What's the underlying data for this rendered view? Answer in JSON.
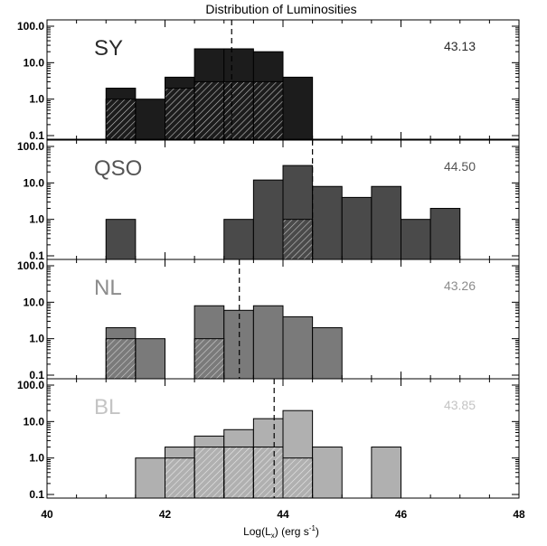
{
  "chart_data": {
    "type": "bar",
    "title": "Distribution of Luminosities",
    "xlabel_main": "Log(L",
    "xlabel_sub": "x",
    "xlabel_rest": ") (erg s",
    "xlabel_sup": "-1",
    "xlabel_end": ")",
    "xlim": [
      40,
      48
    ],
    "xticks": [
      "40",
      "42",
      "44",
      "46",
      "48"
    ],
    "yscale": "log",
    "ylim": [
      0.1,
      100
    ],
    "yticks": [
      "0.1",
      "1.0",
      "10.0",
      "100.0"
    ],
    "bin_width": 0.5,
    "panels": [
      {
        "label": "SY",
        "median_label": "43.13",
        "median": 43.13,
        "fill": "#1c1c1c",
        "text_color": "#2a2a2a",
        "hatch_color": "#c4c4c4",
        "total_bins": [
          [
            41.0,
            2
          ],
          [
            41.5,
            1
          ],
          [
            42.0,
            4
          ],
          [
            42.5,
            24
          ],
          [
            43.0,
            24
          ],
          [
            43.5,
            20
          ],
          [
            44.0,
            4
          ]
        ],
        "hatched_bins": [
          [
            41.0,
            1
          ],
          [
            42.0,
            2
          ],
          [
            42.5,
            3
          ],
          [
            43.0,
            3
          ],
          [
            43.5,
            3
          ]
        ]
      },
      {
        "label": "QSO",
        "median_label": "44.50",
        "median": 44.5,
        "fill": "#4a4a4a",
        "text_color": "#555555",
        "hatch_color": "#c4c4c4",
        "total_bins": [
          [
            41.0,
            1
          ],
          [
            43.0,
            1
          ],
          [
            43.5,
            12
          ],
          [
            44.0,
            30
          ],
          [
            44.5,
            8
          ],
          [
            45.0,
            4
          ],
          [
            45.5,
            8
          ],
          [
            46.0,
            1
          ],
          [
            46.5,
            2
          ]
        ],
        "hatched_bins": [
          [
            44.0,
            1
          ]
        ]
      },
      {
        "label": "NL",
        "median_label": "43.26",
        "median": 43.26,
        "fill": "#7a7a7a",
        "text_color": "#8c8c8c",
        "hatch_color": "#cfcfcf",
        "total_bins": [
          [
            41.0,
            2
          ],
          [
            41.5,
            1
          ],
          [
            42.5,
            8
          ],
          [
            43.0,
            6
          ],
          [
            43.5,
            8
          ],
          [
            44.0,
            4
          ],
          [
            44.5,
            2
          ]
        ],
        "hatched_bins": [
          [
            41.0,
            1
          ],
          [
            42.5,
            1
          ]
        ]
      },
      {
        "label": "BL",
        "median_label": "43.85",
        "median": 43.85,
        "fill": "#b0b0b0",
        "text_color": "#c4c4c4",
        "hatch_color": "#e8e8e8",
        "total_bins": [
          [
            41.5,
            1
          ],
          [
            42.0,
            2
          ],
          [
            42.5,
            4
          ],
          [
            43.0,
            6
          ],
          [
            43.5,
            12
          ],
          [
            44.0,
            20
          ],
          [
            44.5,
            2
          ],
          [
            45.5,
            2
          ]
        ],
        "hatched_bins": [
          [
            42.0,
            1
          ],
          [
            42.5,
            2
          ],
          [
            43.0,
            2
          ],
          [
            43.5,
            2
          ],
          [
            44.0,
            1
          ]
        ]
      }
    ]
  }
}
